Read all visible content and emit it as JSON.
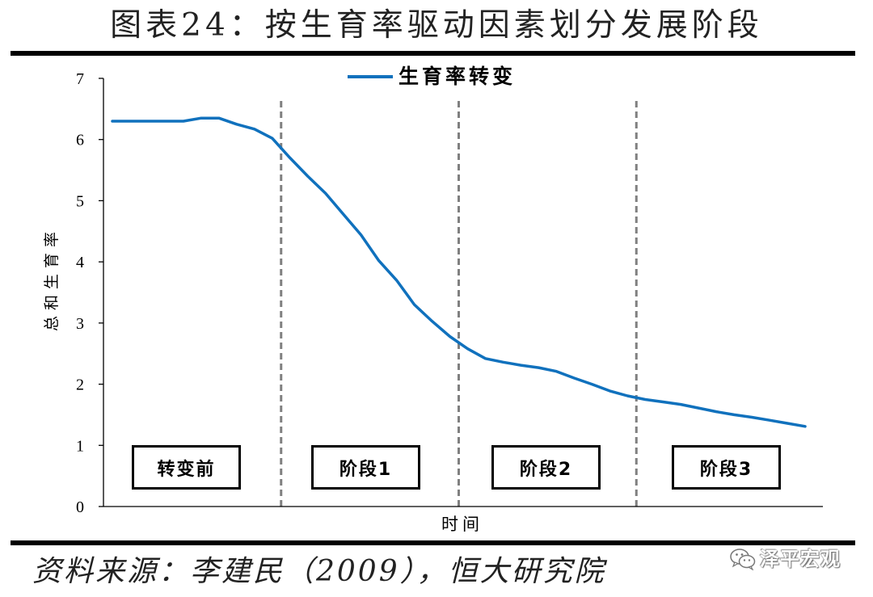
{
  "source": "资料来源：李建民（2009），恒大研究院",
  "watermark": {
    "text": "泽平宏观",
    "icon": "wechat-icon"
  },
  "colors": {
    "line": "#1071BD",
    "divider": "#808080",
    "rule": "#000000"
  },
  "chart_data": {
    "type": "line",
    "title": "图表24：按生育率驱动因素划分发展阶段",
    "xlabel": "时间",
    "ylabel": "总和生育率",
    "xlim": [
      0,
      40.5
    ],
    "ylim": [
      0,
      7
    ],
    "y_ticks": [
      0,
      1,
      2,
      3,
      4,
      5,
      6,
      7
    ],
    "grid": false,
    "legend_position": "top-center",
    "series": [
      {
        "name": "生育率转变",
        "x": [
          0.5,
          1.5,
          2.5,
          3.5,
          4.5,
          5.5,
          6.5,
          7.5,
          8.5,
          9.5,
          10.5,
          11.5,
          12.5,
          13.5,
          14.5,
          15.5,
          16.5,
          17.5,
          18.5,
          19.5,
          20.5,
          21.5,
          22.5,
          23.5,
          24.5,
          25.5,
          26.5,
          27.5,
          28.5,
          29.5,
          30.5,
          31.5,
          32.5,
          33.5,
          34.5,
          35.5,
          36.5,
          37.5,
          38.5,
          39.5
        ],
        "y": [
          6.3,
          6.3,
          6.3,
          6.3,
          6.3,
          6.35,
          6.35,
          6.25,
          6.17,
          6.02,
          5.7,
          5.4,
          5.12,
          4.78,
          4.44,
          4.02,
          3.7,
          3.3,
          3.03,
          2.78,
          2.58,
          2.42,
          2.36,
          2.31,
          2.27,
          2.21,
          2.1,
          2.0,
          1.89,
          1.81,
          1.75,
          1.71,
          1.67,
          1.61,
          1.55,
          1.5,
          1.46,
          1.41,
          1.36,
          1.31
        ]
      }
    ],
    "stage_boundaries": [
      10,
      20,
      30
    ],
    "stages": [
      "转变前",
      "阶段1",
      "阶段2",
      "阶段3"
    ]
  }
}
